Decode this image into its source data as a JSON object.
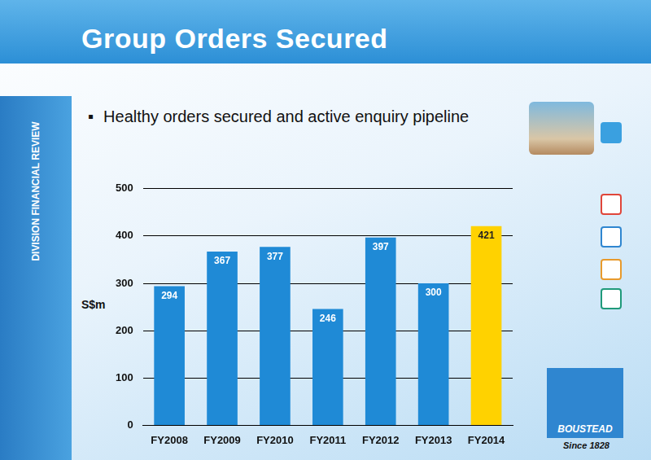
{
  "slide": {
    "title": "Group Orders Secured",
    "bullet": "Healthy orders secured and active enquiry pipeline",
    "side_label": "DIVISION FINANCIAL REVIEW",
    "logo": "BOUSTEAD",
    "logo_tagline": "Since 1828"
  },
  "chart_data": {
    "type": "bar",
    "categories": [
      "FY2008",
      "FY2009",
      "FY2010",
      "FY2011",
      "FY2012",
      "FY2013",
      "FY2014"
    ],
    "values": [
      294,
      367,
      377,
      246,
      397,
      300,
      421
    ],
    "colors": [
      "#1f8ad6",
      "#1f8ad6",
      "#1f8ad6",
      "#1f8ad6",
      "#1f8ad6",
      "#1f8ad6",
      "#ffd200"
    ],
    "y_label": "S$m",
    "ylim": [
      0,
      500
    ],
    "yticks": [
      0,
      100,
      200,
      300,
      400,
      500
    ],
    "grid": true,
    "data_labels": true
  }
}
